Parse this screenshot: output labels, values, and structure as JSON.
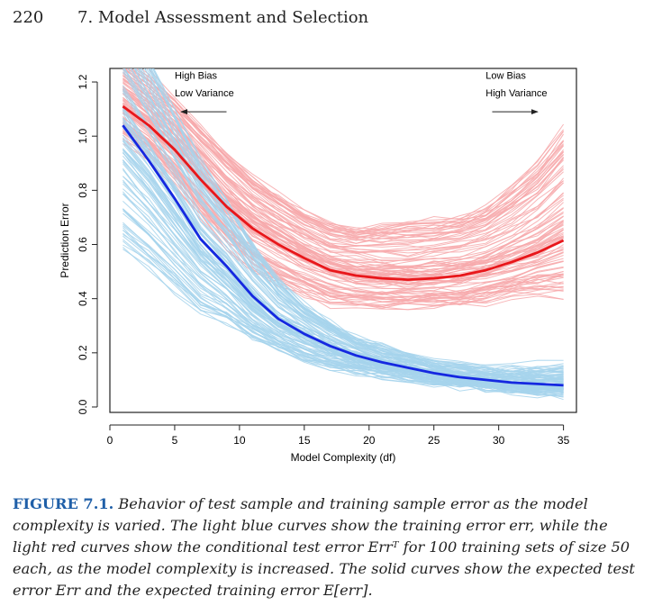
{
  "page": {
    "number": "220",
    "chapter": "7. Model Assessment and Selection"
  },
  "caption": {
    "label": "FIGURE 7.1.",
    "text": "Behavior of test sample and training sample error as the model complexity is varied. The light blue curves show the training error err, while the light red curves show the conditional test error Errᵀ for 100 training sets of size 50 each, as the model complexity is increased. The solid curves show the expected test error Err and the expected training error E[err]."
  },
  "chart_data": {
    "type": "line",
    "title": "",
    "xlabel": "Model Complexity (df)",
    "ylabel": "Prediction Error",
    "xlim": [
      0,
      36
    ],
    "ylim": [
      -0.02,
      1.25
    ],
    "xticks": [
      0,
      5,
      10,
      15,
      20,
      25,
      30,
      35
    ],
    "yticks": [
      0.0,
      0.2,
      0.4,
      0.6,
      0.8,
      1.0,
      1.2
    ],
    "xtick_labels": [
      "0",
      "5",
      "10",
      "15",
      "20",
      "25",
      "30",
      "35"
    ],
    "ytick_labels": [
      "0.0",
      "0.2",
      "0.4",
      "0.6",
      "0.8",
      "1.0",
      "1.2"
    ],
    "grid": false,
    "annotations": [
      {
        "text": "High Bias",
        "x": 5,
        "y": 1.225
      },
      {
        "text": "Low Variance",
        "x": 5,
        "y": 1.16
      },
      {
        "text": "Low Bias",
        "x": 29,
        "y": 1.225
      },
      {
        "text": "High Variance",
        "x": 29,
        "y": 1.16
      }
    ],
    "arrows": [
      {
        "direction": "left",
        "x_from": 9,
        "x_to": 5.5,
        "y": 1.09
      },
      {
        "direction": "right",
        "x_from": 29.5,
        "x_to": 33,
        "y": 1.09
      }
    ],
    "x": [
      1,
      3,
      5,
      7,
      9,
      11,
      13,
      15,
      17,
      19,
      21,
      23,
      25,
      27,
      29,
      31,
      33,
      35
    ],
    "series": [
      {
        "name": "",
        "role": "expected test error",
        "color": "#e8171b",
        "values": [
          1.11,
          1.04,
          0.95,
          0.84,
          0.74,
          0.66,
          0.6,
          0.55,
          0.505,
          0.485,
          0.475,
          0.47,
          0.475,
          0.485,
          0.505,
          0.535,
          0.57,
          0.615
        ]
      },
      {
        "name": "",
        "role": "expected training error",
        "color": "#1528e0",
        "values": [
          1.04,
          0.91,
          0.77,
          0.62,
          0.52,
          0.41,
          0.325,
          0.27,
          0.225,
          0.19,
          0.165,
          0.145,
          0.125,
          0.11,
          0.1,
          0.09,
          0.085,
          0.08
        ]
      }
    ],
    "ensembles": [
      {
        "role": "conditional test error",
        "count": 100,
        "color": "#f7a9ab",
        "mean_values": [
          1.11,
          1.04,
          0.95,
          0.84,
          0.74,
          0.66,
          0.6,
          0.55,
          0.505,
          0.485,
          0.475,
          0.47,
          0.475,
          0.485,
          0.505,
          0.535,
          0.57,
          0.615
        ],
        "spread_low": [
          0.12,
          0.12,
          0.13,
          0.14,
          0.15,
          0.16,
          0.15,
          0.14,
          0.13,
          0.12,
          0.11,
          0.1,
          0.1,
          0.11,
          0.12,
          0.13,
          0.16,
          0.21
        ],
        "spread_high": [
          0.18,
          0.18,
          0.19,
          0.2,
          0.2,
          0.19,
          0.19,
          0.18,
          0.18,
          0.18,
          0.2,
          0.22,
          0.22,
          0.22,
          0.24,
          0.28,
          0.33,
          0.42
        ]
      },
      {
        "role": "training error",
        "count": 100,
        "color": "#a6d3ec",
        "mean_values": [
          1.04,
          0.91,
          0.77,
          0.62,
          0.52,
          0.41,
          0.325,
          0.27,
          0.225,
          0.19,
          0.165,
          0.145,
          0.125,
          0.11,
          0.1,
          0.09,
          0.085,
          0.08
        ],
        "spread_low": [
          0.46,
          0.4,
          0.34,
          0.27,
          0.21,
          0.16,
          0.12,
          0.1,
          0.08,
          0.065,
          0.055,
          0.045,
          0.04,
          0.035,
          0.035,
          0.035,
          0.035,
          0.035
        ],
        "spread_high": [
          0.45,
          0.4,
          0.34,
          0.3,
          0.26,
          0.21,
          0.16,
          0.12,
          0.09,
          0.07,
          0.06,
          0.05,
          0.045,
          0.045,
          0.045,
          0.05,
          0.055,
          0.065
        ]
      }
    ]
  }
}
